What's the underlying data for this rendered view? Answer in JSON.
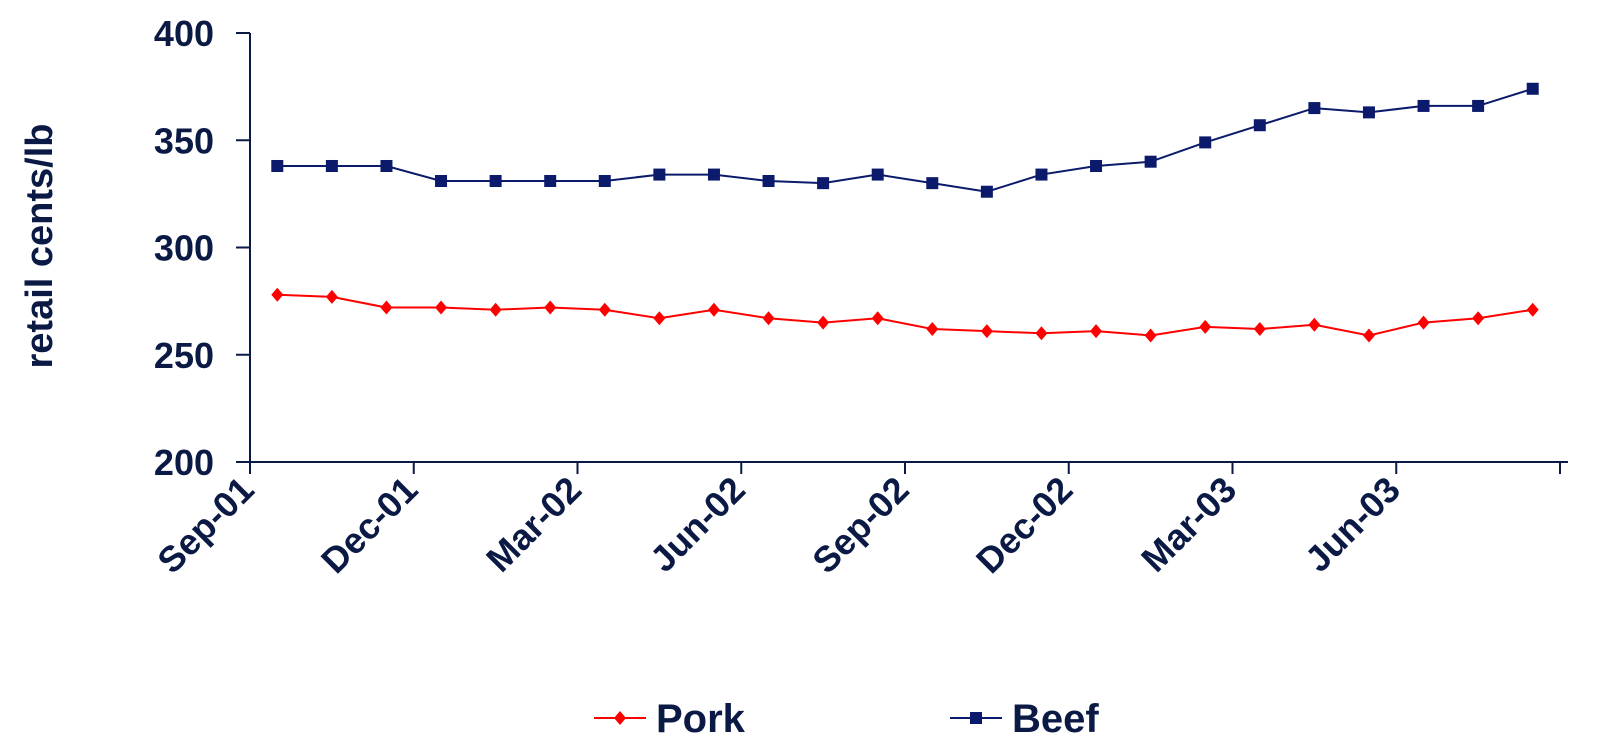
{
  "chart_data": {
    "type": "line",
    "ylabel": "retail cents/lb",
    "xlabel": "",
    "ylim": [
      200,
      400
    ],
    "yticks": [
      200,
      250,
      300,
      350,
      400
    ],
    "xtick_labels": [
      "Sep-01",
      "Dec-01",
      "Mar-02",
      "Jun-02",
      "Sep-02",
      "Dec-02",
      "Mar-03",
      "Jun-03"
    ],
    "x": [
      "Sep-01",
      "Oct-01",
      "Nov-01",
      "Dec-01",
      "Jan-02",
      "Feb-02",
      "Mar-02",
      "Apr-02",
      "May-02",
      "Jun-02",
      "Jul-02",
      "Aug-02",
      "Sep-02",
      "Oct-02",
      "Nov-02",
      "Dec-02",
      "Jan-03",
      "Feb-03",
      "Mar-03",
      "Apr-03",
      "May-03",
      "Jun-03",
      "Jul-03",
      "Aug-03"
    ],
    "series": [
      {
        "name": "Pork",
        "color": "#ff0000",
        "marker": "diamond",
        "values": [
          278,
          277,
          272,
          272,
          271,
          272,
          271,
          267,
          271,
          267,
          265,
          267,
          262,
          261,
          260,
          261,
          259,
          263,
          262,
          264,
          259,
          265,
          267,
          271
        ]
      },
      {
        "name": "Beef",
        "color": "#0b1a6b",
        "marker": "square",
        "values": [
          338,
          338,
          338,
          331,
          331,
          331,
          331,
          334,
          334,
          331,
          330,
          334,
          330,
          326,
          334,
          338,
          340,
          349,
          357,
          365,
          363,
          366,
          366,
          374
        ]
      }
    ],
    "legend_position": "bottom",
    "grid": false
  }
}
